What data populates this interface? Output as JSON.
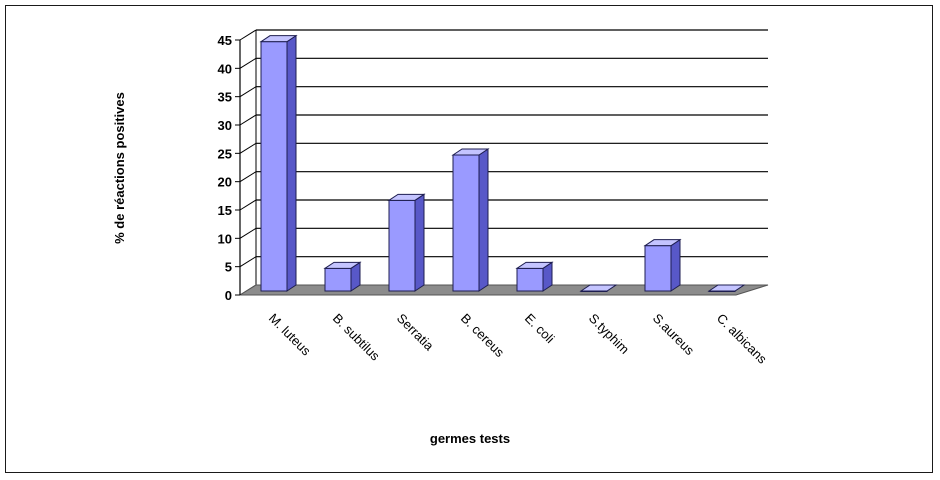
{
  "chart_data": {
    "type": "bar",
    "categories": [
      "M. luteus",
      "B. subtilus",
      "Serratia",
      "B. cereus",
      "E. coli",
      "S.typhim",
      "S.aureus",
      "C. albicans"
    ],
    "values": [
      44,
      4,
      16,
      24,
      4,
      0,
      8,
      0
    ],
    "ylim": [
      0,
      45
    ],
    "yticks": [
      0,
      5,
      10,
      15,
      20,
      25,
      30,
      35,
      40,
      45
    ],
    "ylabel": "% de réactions positives",
    "xlabel": "germes tests",
    "grid": true,
    "style": "3d-column",
    "colors": {
      "bar_front": "#9a9aff",
      "bar_side": "#5858c8",
      "bar_top": "#c4c4ff",
      "bar_stroke": "#1e1e50",
      "floor": "#8c8c8c",
      "grid": "#000000"
    }
  }
}
